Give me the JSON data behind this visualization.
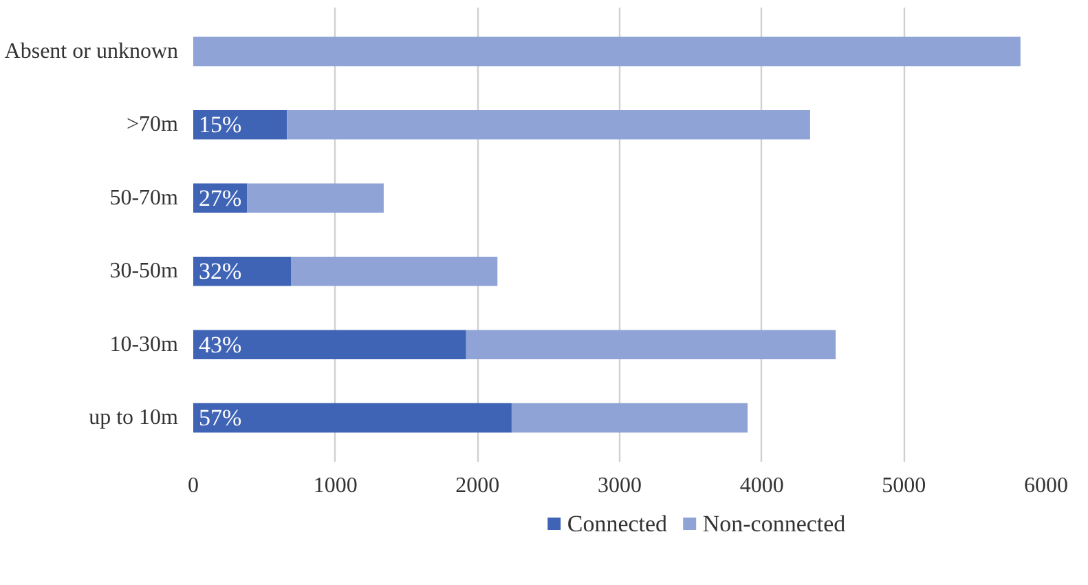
{
  "chart_data": {
    "type": "bar",
    "orientation": "horizontal",
    "stacked": true,
    "categories": [
      "Absent or unknown",
      ">70m",
      "50-70m",
      "30-50m",
      "10-30m",
      "up to 10m"
    ],
    "series": [
      {
        "name": "Connected",
        "color": "#3f63b5",
        "values": [
          0,
          660,
          380,
          690,
          1920,
          2240
        ]
      },
      {
        "name": "Non-connected",
        "color": "#8fa3d6",
        "values": [
          5820,
          3680,
          960,
          1450,
          2600,
          1660
        ]
      }
    ],
    "annotations": [
      "15%",
      "27%",
      "32%",
      "43%",
      "57%"
    ],
    "xlim": [
      0,
      6000
    ],
    "xticks": [
      0,
      1000,
      2000,
      3000,
      4000,
      5000,
      6000
    ],
    "grid": "x",
    "legend": "bottom"
  }
}
